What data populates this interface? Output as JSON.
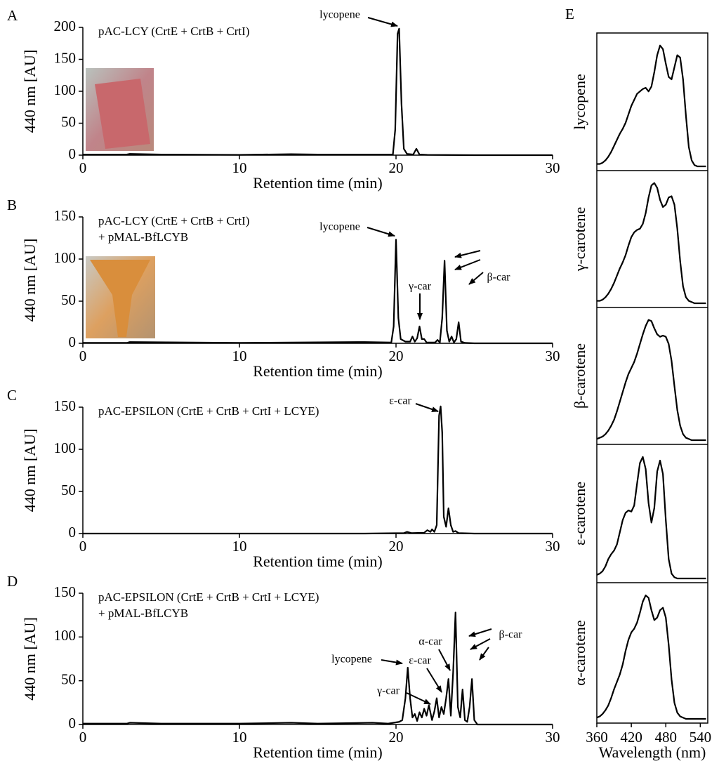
{
  "chart_data": [
    {
      "type": "line",
      "panel_label": "A",
      "title": [
        "pAC-LCY (CrtE + CrtB + CrtI)"
      ],
      "xlabel": "Retention time (min)",
      "ylabel": "440 nm [AU]",
      "xlim": [
        0,
        30
      ],
      "xticks": [
        0,
        10,
        20,
        30
      ],
      "ylim": [
        0,
        200
      ],
      "yticks": [
        0,
        50,
        100,
        150,
        200
      ],
      "color": "#000000",
      "annotations": [
        "lycopene"
      ],
      "x": [
        0,
        2.8,
        3,
        5,
        10,
        13.3,
        15,
        19.8,
        19.95,
        20.1,
        20.2,
        20.35,
        20.5,
        20.7,
        21.1,
        21.3,
        21.5,
        22,
        25,
        30
      ],
      "values": [
        1,
        1,
        2,
        1,
        0.5,
        1.5,
        1,
        1,
        40,
        190,
        198,
        80,
        10,
        2,
        1,
        10,
        1,
        0.5,
        0,
        0
      ]
    },
    {
      "type": "line",
      "panel_label": "B",
      "title": [
        "pAC-LCY (CrtE + CrtB + CrtI)",
        "+ pMAL-BfLCYB"
      ],
      "xlabel": "Retention time (min)",
      "ylabel": "440 nm [AU]",
      "xlim": [
        0,
        30
      ],
      "xticks": [
        0,
        10,
        20,
        30
      ],
      "ylim": [
        0,
        150
      ],
      "yticks": [
        0,
        50,
        100,
        150
      ],
      "color": "#000000",
      "annotations": [
        "lycopene",
        "γ-car",
        "β-car"
      ],
      "x": [
        0,
        2.8,
        3,
        10,
        18,
        19.7,
        19.85,
        20.0,
        20.15,
        20.3,
        20.6,
        20.9,
        21.05,
        21.2,
        21.35,
        21.5,
        21.65,
        21.8,
        21.95,
        22.2,
        22.5,
        22.65,
        22.8,
        22.95,
        23.1,
        23.25,
        23.4,
        23.55,
        23.7,
        23.85,
        24.0,
        24.15,
        24.4,
        25,
        30
      ],
      "values": [
        0.5,
        0.5,
        1.5,
        0.5,
        1.5,
        1,
        20,
        123,
        30,
        5,
        2,
        2,
        8,
        2,
        6,
        20,
        5,
        5,
        1,
        1,
        1,
        4,
        1,
        30,
        98,
        15,
        2,
        8,
        1,
        5,
        25,
        2,
        0.5,
        0,
        0
      ]
    },
    {
      "type": "line",
      "panel_label": "C",
      "title": [
        "pAC-EPSILON (CrtE + CrtB + CrtI + LCYE)"
      ],
      "xlabel": "Retention time (min)",
      "ylabel": "440 nm [AU]",
      "xlim": [
        0,
        30
      ],
      "xticks": [
        0,
        10,
        20,
        30
      ],
      "ylim": [
        0,
        150
      ],
      "yticks": [
        0,
        50,
        100,
        150
      ],
      "color": "#000000",
      "annotations": [
        "ε-car"
      ],
      "x": [
        0,
        10,
        18,
        20.5,
        20.7,
        21,
        21.8,
        22.0,
        22.2,
        22.3,
        22.45,
        22.6,
        22.75,
        22.85,
        22.95,
        23.05,
        23.2,
        23.35,
        23.5,
        23.65,
        23.8,
        24,
        25,
        30
      ],
      "values": [
        0,
        0,
        0,
        0.5,
        2,
        0.5,
        1,
        4,
        2,
        5,
        2,
        10,
        140,
        151,
        120,
        20,
        8,
        30,
        10,
        2,
        3,
        0.5,
        0,
        0
      ]
    },
    {
      "type": "line",
      "panel_label": "D",
      "title": [
        "pAC-EPSILON (CrtE + CrtB + CrtI + LCYE)",
        "+ pMAL-BfLCYB"
      ],
      "xlabel": "Retention time (min)",
      "ylabel": "440 nm [AU]",
      "xlim": [
        0,
        30
      ],
      "xticks": [
        0,
        10,
        20,
        30
      ],
      "ylim": [
        0,
        150
      ],
      "yticks": [
        0,
        50,
        100,
        150
      ],
      "color": "#000000",
      "annotations": [
        "lycopene",
        "ε-car",
        "α-car",
        "β-car",
        "γ-car"
      ],
      "x": [
        0,
        2.8,
        3,
        5,
        10,
        13.3,
        15,
        18.5,
        19.5,
        20.2,
        20.4,
        20.6,
        20.75,
        20.9,
        21.05,
        21.2,
        21.35,
        21.5,
        21.65,
        21.8,
        21.95,
        22.1,
        22.3,
        22.45,
        22.6,
        22.75,
        22.9,
        23.05,
        23.2,
        23.35,
        23.5,
        23.65,
        23.8,
        23.95,
        24.1,
        24.25,
        24.4,
        24.55,
        24.7,
        24.85,
        25.0,
        25.2,
        30
      ],
      "values": [
        1,
        1,
        2,
        1,
        1,
        2,
        1,
        2,
        1,
        3,
        5,
        30,
        65,
        30,
        8,
        12,
        4,
        14,
        8,
        18,
        10,
        22,
        5,
        15,
        30,
        8,
        20,
        12,
        30,
        52,
        10,
        60,
        128,
        20,
        8,
        40,
        5,
        3,
        20,
        52,
        5,
        0,
        0
      ]
    },
    {
      "type": "line",
      "panel_label": "E",
      "xlabel": "Wavelength (nm)",
      "xlim": [
        360,
        553
      ],
      "xticks": [
        360,
        420,
        480,
        540
      ],
      "ylim": [
        0,
        1.08
      ],
      "x": [
        360,
        365,
        370,
        375,
        380,
        385,
        390,
        395,
        400,
        405,
        410,
        415,
        420,
        425,
        430,
        435,
        440,
        445,
        450,
        455,
        460,
        465,
        470,
        475,
        480,
        485,
        490,
        495,
        500,
        505,
        510,
        515,
        520,
        525,
        530,
        535,
        540,
        545,
        550
      ],
      "series": [
        {
          "name": "lycopene",
          "color": "#000000",
          "values": [
            0.02,
            0.02,
            0.03,
            0.05,
            0.08,
            0.12,
            0.17,
            0.22,
            0.27,
            0.31,
            0.36,
            0.43,
            0.5,
            0.55,
            0.6,
            0.62,
            0.64,
            0.65,
            0.62,
            0.66,
            0.78,
            0.92,
            1.0,
            0.97,
            0.85,
            0.74,
            0.72,
            0.82,
            0.92,
            0.9,
            0.72,
            0.42,
            0.16,
            0.05,
            0.01,
            0,
            0,
            0,
            0
          ]
        },
        {
          "name": "γ-carotene",
          "color": "#000000",
          "values": [
            0.02,
            0.02,
            0.03,
            0.05,
            0.08,
            0.12,
            0.17,
            0.23,
            0.29,
            0.34,
            0.4,
            0.48,
            0.55,
            0.59,
            0.61,
            0.62,
            0.66,
            0.75,
            0.88,
            0.98,
            1.0,
            0.96,
            0.86,
            0.8,
            0.82,
            0.88,
            0.89,
            0.82,
            0.62,
            0.35,
            0.14,
            0.05,
            0.02,
            0.01,
            0,
            0,
            0,
            0,
            0
          ]
        },
        {
          "name": "β-carotene",
          "color": "#000000",
          "values": [
            0.01,
            0.02,
            0.03,
            0.05,
            0.08,
            0.12,
            0.17,
            0.24,
            0.32,
            0.4,
            0.48,
            0.55,
            0.6,
            0.65,
            0.72,
            0.8,
            0.88,
            0.95,
            1.0,
            0.99,
            0.93,
            0.88,
            0.86,
            0.87,
            0.86,
            0.8,
            0.66,
            0.45,
            0.25,
            0.12,
            0.05,
            0.02,
            0.01,
            0,
            0,
            0,
            0,
            0,
            0
          ]
        },
        {
          "name": "ε-carotene",
          "color": "#000000",
          "values": [
            0.03,
            0.04,
            0.06,
            0.1,
            0.16,
            0.2,
            0.23,
            0.28,
            0.38,
            0.48,
            0.54,
            0.56,
            0.55,
            0.6,
            0.78,
            0.95,
            1.0,
            0.9,
            0.62,
            0.46,
            0.58,
            0.88,
            0.97,
            0.86,
            0.48,
            0.16,
            0.04,
            0.01,
            0,
            0,
            0,
            0,
            0,
            0,
            0,
            0,
            0,
            0,
            0
          ]
        },
        {
          "name": "α-carotene",
          "color": "#000000",
          "values": [
            0.01,
            0.02,
            0.04,
            0.07,
            0.11,
            0.17,
            0.24,
            0.3,
            0.36,
            0.44,
            0.55,
            0.64,
            0.7,
            0.73,
            0.78,
            0.86,
            0.95,
            1.0,
            0.98,
            0.88,
            0.8,
            0.82,
            0.88,
            0.9,
            0.82,
            0.6,
            0.32,
            0.13,
            0.05,
            0.02,
            0.01,
            0,
            0,
            0,
            0,
            0,
            0,
            0,
            0
          ]
        }
      ]
    }
  ]
}
